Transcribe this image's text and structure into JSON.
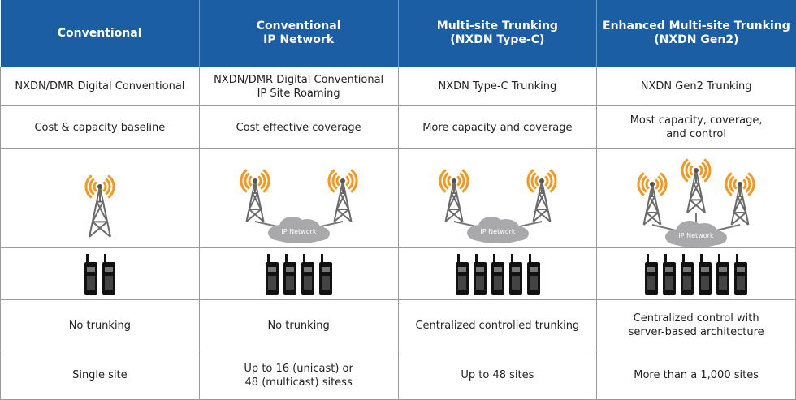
{
  "header": {
    "columns": [
      "Conventional",
      "Conventional\nIP Network",
      "Multi-site Trunking\n(NXDN Type-C)",
      "Enhanced Multi-site Trunking\n(NXDN Gen2)"
    ]
  },
  "table": {
    "rows": [
      [
        "NXDN/DMR Digital Conventional",
        "NXDN/DMR Digital Conventional\nIP Site Roaming",
        "NXDN Type-C Trunking",
        "NXDN Gen2 Trunking"
      ],
      [
        "Cost & capacity baseline",
        "Cost effective coverage",
        "More capacity and coverage",
        "Most capacity, coverage,\nand control"
      ],
      [
        "No trunking",
        "No trunking",
        "Centralized controlled trunking",
        "Centralized control with\nserver-based architecture"
      ],
      [
        "Single site",
        "Up to 16 (unicast) or\n48 (multicast) sitess",
        "Up to 48 sites",
        "More than a 1,000 sites"
      ]
    ]
  },
  "diagram": {
    "cloud_labels": [
      "IP Network",
      "IP Network",
      "IP Network"
    ]
  }
}
